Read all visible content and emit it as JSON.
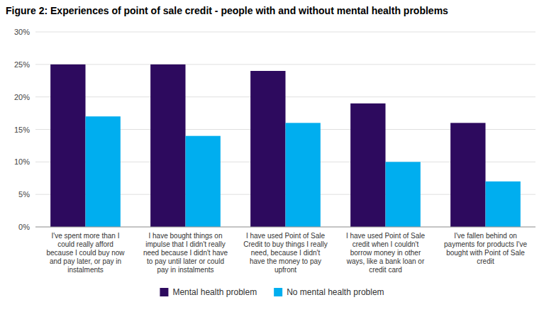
{
  "chart_data": {
    "type": "bar",
    "title": "Figure 2: Experiences of point of sale credit - people with and without mental health problems",
    "categories": [
      "I've spent more than I\ncould really afford\nbecause I could buy now\nand pay later, or pay in\ninstalments",
      "I have bought things on\nimpulse that I didn't really\nneed because I didn't have\nto pay until later or could\npay in instalments",
      "I have used Point of Sale\nCredit to buy things I really\nneed, because I didn't\nhave the money to pay\nupfront",
      "I have used Point of Sale\ncredit when I couldn't\nborrow money in other\nways, like a bank loan or\ncredit card",
      "I've fallen behind on\npayments for products I've\nbought with Point of Sale\ncredit"
    ],
    "series": [
      {
        "name": "Mental health problem",
        "color": "#2d0a5e",
        "values": [
          25,
          25,
          24,
          19,
          16
        ]
      },
      {
        "name": "No mental health problem",
        "color": "#00aeef",
        "values": [
          17,
          14,
          16,
          10,
          7
        ]
      }
    ],
    "ylim": [
      0,
      30
    ],
    "yticks": [
      {
        "value": 0,
        "label": "0%"
      },
      {
        "value": 5,
        "label": "5%"
      },
      {
        "value": 10,
        "label": "10%"
      },
      {
        "value": 15,
        "label": "15%"
      },
      {
        "value": 20,
        "label": "20%"
      },
      {
        "value": 25,
        "label": "25%"
      },
      {
        "value": 30,
        "label": "30%"
      }
    ],
    "grid": true,
    "legend": "bottom"
  }
}
